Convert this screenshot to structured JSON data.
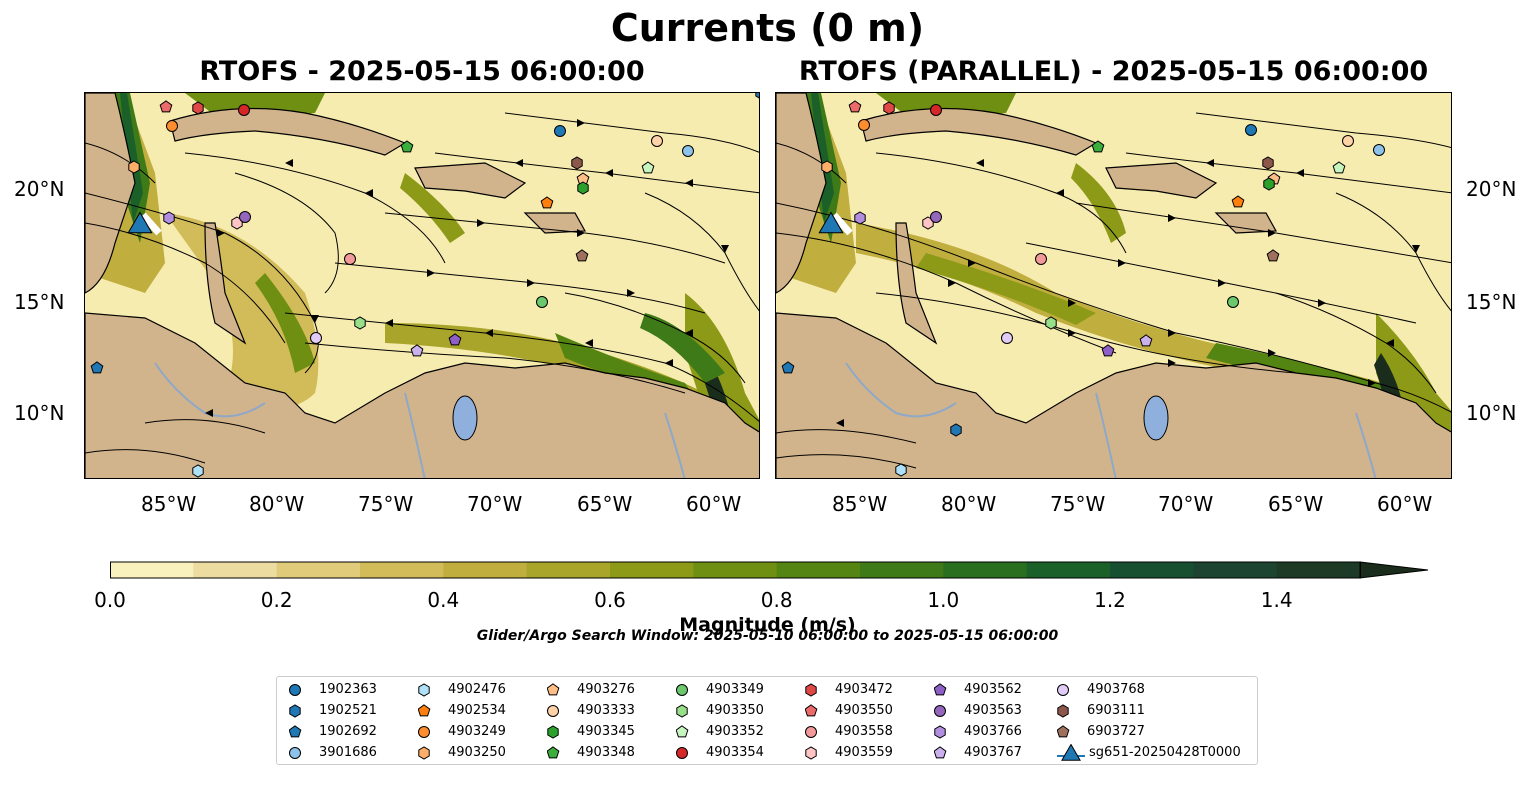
{
  "figure": {
    "suptitle": "Currents (0 m)",
    "panels": [
      {
        "title": "RTOFS - 2025-05-15 06:00:00"
      },
      {
        "title": "RTOFS (PARALLEL) - 2025-05-15 06:00:00"
      }
    ],
    "lon_ticks": [
      "85°W",
      "80°W",
      "75°W",
      "70°W",
      "65°W",
      "60°W"
    ],
    "lat_ticks": [
      "20°N",
      "15°N",
      "10°N"
    ],
    "colorbar": {
      "label": "Magnitude (m/s)",
      "ticks": [
        "0.0",
        "0.2",
        "0.4",
        "0.6",
        "0.8",
        "1.0",
        "1.2",
        "1.4"
      ],
      "range": [
        0,
        1.5
      ],
      "step": 0.1,
      "extend": "max",
      "colors": [
        "#f8f1bd",
        "#ecdca0",
        "#e0cb7a",
        "#d2bc5a",
        "#c0ae3e",
        "#a9a42a",
        "#8c9a18",
        "#6f8f12",
        "#548411",
        "#3e7a18",
        "#2a6e20",
        "#1a6028",
        "#165030",
        "#1c4430",
        "#1d3a26",
        "#1a2c1c"
      ]
    },
    "search_window": "Glider/Argo Search Window: 2025-05-10 06:00:00 to 2025-05-15 06:00:00",
    "land_color": "#d2b48c",
    "lake_color": "#8fb0dc"
  },
  "legend": {
    "items": [
      {
        "label": "1902363",
        "marker": "circle",
        "color": "#1f77b4"
      },
      {
        "label": "1902521",
        "marker": "hexagon",
        "color": "#1f77b4"
      },
      {
        "label": "1902692",
        "marker": "pentagon",
        "color": "#1f77b4"
      },
      {
        "label": "3901686",
        "marker": "circle",
        "color": "#8dc3ea"
      },
      {
        "label": "4902476",
        "marker": "hexagon",
        "color": "#aee0f7"
      },
      {
        "label": "4902534",
        "marker": "pentagon",
        "color": "#ff7f0e"
      },
      {
        "label": "4903249",
        "marker": "circle",
        "color": "#ff8c2e"
      },
      {
        "label": "4903250",
        "marker": "hexagon",
        "color": "#ffae6a"
      },
      {
        "label": "4903276",
        "marker": "pentagon",
        "color": "#ffbe86"
      },
      {
        "label": "4903333",
        "marker": "circle",
        "color": "#ffd2a8"
      },
      {
        "label": "4903345",
        "marker": "hexagon",
        "color": "#2ca02c"
      },
      {
        "label": "4903348",
        "marker": "pentagon",
        "color": "#3cae3c"
      },
      {
        "label": "4903349",
        "marker": "circle",
        "color": "#6cc86c"
      },
      {
        "label": "4903350",
        "marker": "hexagon",
        "color": "#98df8a"
      },
      {
        "label": "4903352",
        "marker": "pentagon",
        "color": "#c6f5c0"
      },
      {
        "label": "4903354",
        "marker": "circle",
        "color": "#d62728"
      },
      {
        "label": "4903472",
        "marker": "hexagon",
        "color": "#e04848"
      },
      {
        "label": "4903550",
        "marker": "pentagon",
        "color": "#ec6a6a"
      },
      {
        "label": "4903558",
        "marker": "circle",
        "color": "#f29a9a"
      },
      {
        "label": "4903559",
        "marker": "hexagon",
        "color": "#ffc4c4"
      },
      {
        "label": "4903562",
        "marker": "pentagon",
        "color": "#8e5fc7"
      },
      {
        "label": "4903563",
        "marker": "circle",
        "color": "#9467bd"
      },
      {
        "label": "4903766",
        "marker": "hexagon",
        "color": "#b28ee0"
      },
      {
        "label": "4903767",
        "marker": "pentagon",
        "color": "#cbb0ee"
      },
      {
        "label": "4903768",
        "marker": "circle",
        "color": "#e0ccf7"
      },
      {
        "label": "6903111",
        "marker": "hexagon",
        "color": "#8c564b"
      },
      {
        "label": "6903727",
        "marker": "pentagon",
        "color": "#a0705e"
      },
      {
        "label": "sg651-20250428T0000",
        "marker": "triangle",
        "color": "#1f77b4"
      }
    ]
  }
}
